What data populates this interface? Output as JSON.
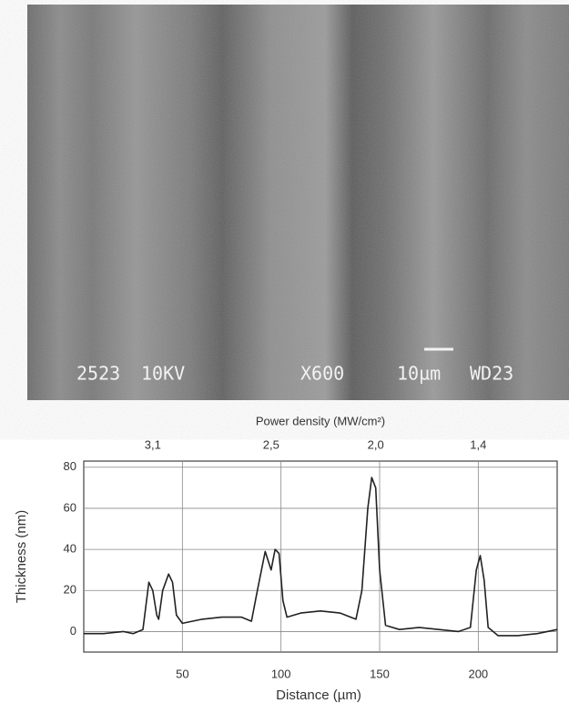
{
  "sem_image": {
    "labels": [
      "2523",
      "10KV",
      "X600",
      "10µm",
      "WD23"
    ]
  },
  "chart_data": {
    "type": "line",
    "top_axis_label": "Power density (MW/cm²)",
    "power_density": {
      "values": [
        3.1,
        2.5,
        2.0,
        1.4
      ],
      "value_labels": [
        "3,1",
        "2,5",
        "2,0",
        "1,4"
      ],
      "x": [
        35,
        95,
        148,
        200
      ]
    },
    "xlabel": "Distance (µm)",
    "ylabel": "Thickness (nm)",
    "x": [
      0,
      10,
      20,
      25,
      30,
      33,
      35,
      37,
      38,
      40,
      43,
      45,
      47,
      50,
      60,
      70,
      80,
      85,
      88,
      92,
      95,
      97,
      99,
      101,
      103,
      110,
      120,
      130,
      138,
      141,
      144,
      146,
      148,
      150,
      153,
      160,
      170,
      190,
      196,
      199,
      201,
      203,
      205,
      210,
      220,
      230,
      240
    ],
    "series": [
      {
        "color": "#222222",
        "values": [
          -1,
          -1,
          0,
          -1,
          1,
          24,
          20,
          8,
          6,
          20,
          28,
          24,
          8,
          4,
          6,
          7,
          7,
          5,
          20,
          39,
          30,
          40,
          38,
          15,
          7,
          9,
          10,
          9,
          6,
          20,
          60,
          75,
          70,
          30,
          3,
          1,
          2,
          0,
          2,
          30,
          37,
          25,
          2,
          -2,
          -2,
          -1,
          1
        ]
      }
    ],
    "xlim": [
      0,
      240
    ],
    "ylim": [
      -10,
      83
    ],
    "xticks": [
      50,
      100,
      150,
      200
    ],
    "yticks": [
      0,
      20,
      40,
      60,
      80
    ],
    "grid": true
  }
}
